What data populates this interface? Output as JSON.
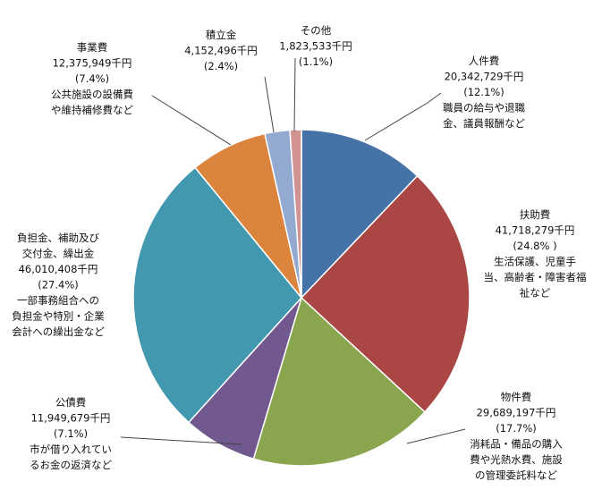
{
  "chart_data": {
    "type": "pie",
    "title": "",
    "slices": [
      {
        "name": "人件費",
        "amount": "20,342,729千円",
        "percent_label": "(12.1%)",
        "value": 12.1,
        "note": [
          "職員の給与や退職",
          "金、議員報酬など"
        ],
        "color": "#4572a7"
      },
      {
        "name": "扶助費",
        "amount": "41,718,279千円",
        "percent_label": "(24.8% )",
        "value": 24.8,
        "note": [
          "生活保護、児童手",
          "当、高齢者・障害者福",
          "祉など"
        ],
        "color": "#aa4643"
      },
      {
        "name": "物件費",
        "amount": "29,689,197千円",
        "percent_label": "(17.7%)",
        "value": 17.7,
        "note": [
          "消耗品・備品の購入",
          "費や光熱水費、施設",
          "の管理委託料など"
        ],
        "color": "#89a54e"
      },
      {
        "name": "公債費",
        "amount": "11,949,679千円",
        "percent_label": "(7.1%)",
        "value": 7.1,
        "note": [
          "市が借り入れてい",
          "るお金の返済など"
        ],
        "color": "#71588f"
      },
      {
        "name": "負担金、補助及び",
        "name2": "交付金、繰出金",
        "amount": "46,010,408千円",
        "percent_label": "(27.4%)",
        "value": 27.4,
        "note": [
          "一部事務組合への",
          "負担金や特別・企業",
          "会計への繰出金など"
        ],
        "color": "#4198af"
      },
      {
        "name": "事業費",
        "amount": "12,375,949千円",
        "percent_label": "(7.4%)",
        "value": 7.4,
        "note": [
          "公共施設の設備費",
          "や維持補修費など"
        ],
        "color": "#db843d"
      },
      {
        "name": "積立金",
        "amount": "4,152,496千円",
        "percent_label": "(2.4%)",
        "value": 2.4,
        "note": [],
        "color": "#93a9cf"
      },
      {
        "name": "その他",
        "amount": "1,823,533千円",
        "percent_label": "(1.1%)",
        "value": 1.1,
        "note": [],
        "color": "#d19392"
      }
    ]
  }
}
